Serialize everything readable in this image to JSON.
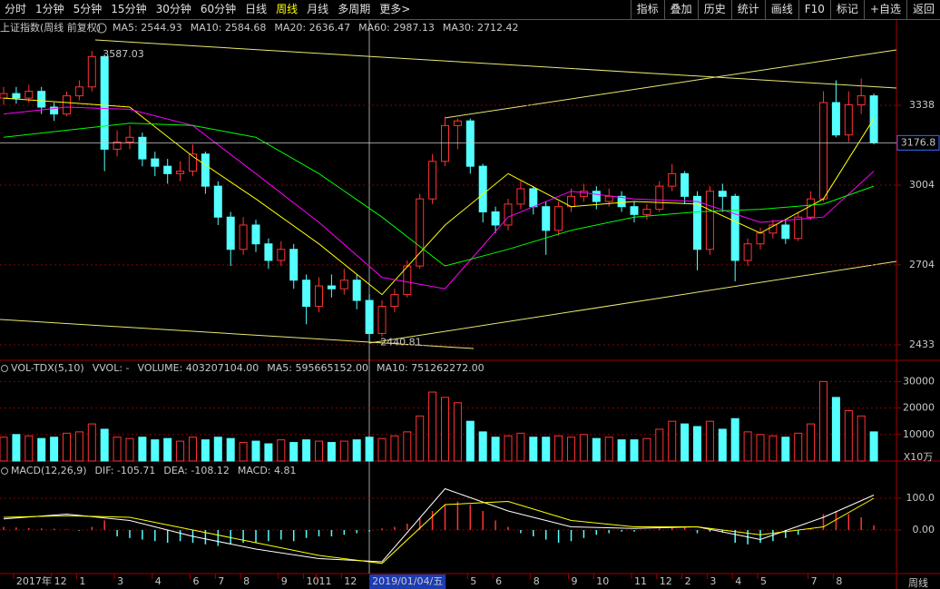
{
  "toolbar": {
    "left": [
      "分时",
      "1分钟",
      "5分钟",
      "15分钟",
      "30分钟",
      "60分钟",
      "日线",
      "周线",
      "月线",
      "多周期",
      "更多>"
    ],
    "right": [
      "指标",
      "叠加",
      "历史",
      "统计",
      "画线",
      "F10",
      "标记",
      "+自选",
      "返回"
    ],
    "selected": "周线"
  },
  "chart_data": {
    "type": "candlestick",
    "title": "上证指数(周线 前复权)",
    "legend": [
      {
        "text": "MA5: 2544.93",
        "color": "#ffffff"
      },
      {
        "text": "MA10: 2584.68",
        "color": "#ffff00"
      },
      {
        "text": "MA20: 2636.47",
        "color": "#ff00ff"
      },
      {
        "text": "MA60: 2987.13",
        "color": "#00ff00"
      },
      {
        "text": "MA30: 2712.42",
        "color": "#ffffff"
      }
    ],
    "categories": [
      null,
      "2017年",
      null,
      null,
      "12",
      null,
      "1",
      null,
      null,
      "3",
      null,
      null,
      "4",
      null,
      null,
      "6",
      null,
      "7",
      null,
      "8",
      null,
      null,
      "9",
      null,
      "10",
      "11",
      null,
      "12",
      null,
      "2019/01/04/五",
      null,
      null,
      null,
      null,
      null,
      null,
      null,
      "5",
      null,
      "6",
      null,
      null,
      "8",
      null,
      null,
      "9",
      null,
      "10",
      null,
      null,
      "11",
      null,
      "12",
      null,
      "2",
      null,
      "3",
      null,
      "4",
      null,
      "5",
      null,
      null,
      null,
      "7",
      null,
      "8",
      null,
      null,
      null
    ],
    "open": [
      3370,
      3390,
      3370,
      3400,
      3330,
      3300,
      3380,
      3420,
      3560,
      3150,
      3180,
      3200,
      3110,
      3080,
      3050,
      3060,
      3130,
      3000,
      2880,
      2760,
      2850,
      2780,
      2720,
      2760,
      2650,
      2560,
      2630,
      2620,
      2650,
      2580,
      2470,
      2560,
      2600,
      2700,
      2950,
      3100,
      3250,
      3270,
      3080,
      2900,
      2850,
      2930,
      2990,
      2920,
      2830,
      2920,
      2960,
      2980,
      2940,
      2960,
      2920,
      2890,
      2910,
      3000,
      3050,
      2960,
      2760,
      2980,
      2960,
      2720,
      2780,
      2820,
      2850,
      2800,
      2880,
      2950,
      3350,
      3210,
      3340,
      3380
    ],
    "high": [
      3420,
      3420,
      3430,
      3420,
      3350,
      3400,
      3450,
      3587,
      3570,
      3230,
      3250,
      3220,
      3140,
      3110,
      3100,
      3170,
      3140,
      3020,
      2900,
      2880,
      2870,
      2800,
      2790,
      2780,
      2670,
      2660,
      2670,
      2690,
      2670,
      2600,
      2580,
      2620,
      2720,
      2970,
      3130,
      3288,
      3280,
      3280,
      3090,
      2920,
      2950,
      3020,
      3000,
      2940,
      2940,
      2990,
      3010,
      3000,
      2990,
      2980,
      2940,
      2930,
      3020,
      3090,
      3060,
      2980,
      3000,
      3010,
      2970,
      2800,
      2840,
      2870,
      2870,
      2900,
      2980,
      3400,
      3450,
      3400,
      3458,
      3390
    ],
    "low": [
      3340,
      3345,
      3350,
      3300,
      3270,
      3290,
      3360,
      3400,
      3060,
      3120,
      3150,
      3080,
      3040,
      3010,
      3020,
      3040,
      2970,
      2850,
      2700,
      2740,
      2750,
      2690,
      2700,
      2620,
      2500,
      2540,
      2590,
      2600,
      2550,
      2440,
      2460,
      2540,
      2590,
      2690,
      2930,
      3080,
      3150,
      3050,
      2860,
      2820,
      2830,
      2910,
      2890,
      2740,
      2810,
      2900,
      2940,
      2910,
      2920,
      2900,
      2860,
      2870,
      2900,
      2980,
      2930,
      2685,
      2740,
      2900,
      2646,
      2700,
      2760,
      2800,
      2780,
      2790,
      2870,
      2940,
      3200,
      3180,
      3300,
      3170
    ],
    "close": [
      3390,
      3370,
      3400,
      3330,
      3300,
      3380,
      3420,
      3560,
      3150,
      3180,
      3200,
      3110,
      3080,
      3050,
      3060,
      3130,
      3000,
      2880,
      2760,
      2850,
      2780,
      2720,
      2760,
      2650,
      2560,
      2630,
      2620,
      2650,
      2580,
      2470,
      2560,
      2600,
      2700,
      2950,
      3100,
      3250,
      3270,
      3080,
      2900,
      2850,
      2930,
      2990,
      2920,
      2830,
      2920,
      2960,
      2980,
      2940,
      2960,
      2920,
      2890,
      2910,
      3000,
      3050,
      2960,
      2760,
      2980,
      2960,
      2720,
      2780,
      2820,
      2850,
      2800,
      2880,
      2950,
      3350,
      3210,
      3340,
      3380,
      3176.8
    ],
    "up_color": "#ff3232",
    "down_color": "#54ffff",
    "ma_series": [
      {
        "color": "#ffff00",
        "x": [
          0,
          5,
          10,
          15,
          20,
          25,
          30,
          35,
          40,
          45,
          50,
          55,
          60,
          65,
          69
        ],
        "values": [
          3370,
          3350,
          3330,
          3120,
          2950,
          2780,
          2600,
          2850,
          3050,
          2920,
          2940,
          2930,
          2820,
          2950,
          3280
        ]
      },
      {
        "color": "#ff00ff",
        "x": [
          0,
          5,
          10,
          15,
          20,
          25,
          30,
          35,
          40,
          45,
          50,
          55,
          60,
          65,
          69
        ],
        "values": [
          3300,
          3330,
          3320,
          3250,
          3050,
          2860,
          2660,
          2620,
          2880,
          2980,
          2950,
          2940,
          2860,
          2880,
          3060
        ]
      },
      {
        "color": "#00ff00",
        "x": [
          0,
          5,
          10,
          15,
          20,
          25,
          30,
          35,
          40,
          45,
          50,
          55,
          60,
          65,
          69
        ],
        "values": [
          3200,
          3230,
          3260,
          3250,
          3200,
          3050,
          2880,
          2700,
          2760,
          2830,
          2880,
          2900,
          2910,
          2930,
          3000
        ]
      }
    ],
    "high_label": 3587.03,
    "low_label": 2440.81,
    "current_price": 3176.8,
    "log_scale": true,
    "ylim": [
      2384,
      3736
    ],
    "yticks": [
      3338,
      3004,
      2704,
      2433
    ],
    "grid": true,
    "volume": {
      "legend": [
        {
          "text": "VOL-TDX(5,10)",
          "color": "#c8c8c8"
        },
        {
          "text": "VVOL: -",
          "color": "#c8c8c8"
        },
        {
          "text": "VOLUME: 403207104.00",
          "color": "#ffff00"
        },
        {
          "text": "MA5: 595665152.00",
          "color": "#ffff00"
        },
        {
          "text": "MA10: 751262272.00",
          "color": "#ff00ff"
        }
      ],
      "unit": "X10万",
      "values": [
        9000,
        10000,
        9500,
        8500,
        9000,
        10500,
        11000,
        14000,
        12000,
        9000,
        8500,
        9000,
        8000,
        8500,
        7500,
        9000,
        8000,
        9000,
        8500,
        7000,
        7500,
        6500,
        8000,
        7000,
        8000,
        7500,
        7000,
        7500,
        8000,
        9000,
        8500,
        9500,
        11000,
        17000,
        26000,
        24000,
        22000,
        15000,
        11000,
        9000,
        9500,
        10500,
        9000,
        9000,
        9500,
        9000,
        10000,
        8500,
        9000,
        8000,
        8000,
        8500,
        12000,
        15000,
        14000,
        13000,
        15000,
        12000,
        16000,
        11000,
        10000,
        9500,
        9000,
        10500,
        14000,
        30000,
        24000,
        19000,
        17000,
        11000
      ],
      "ylim": [
        0,
        38000
      ],
      "yticks": [
        30000,
        20000,
        10000
      ]
    },
    "macd": {
      "legend": [
        {
          "text": "MACD(12,26,9)",
          "color": "#c8c8c8"
        },
        {
          "text": "DIF: -105.71",
          "color": "#ffffff"
        },
        {
          "text": "DEA: -108.12",
          "color": "#ffff00"
        },
        {
          "text": "MACD: 4.81",
          "color": "#ff00ff"
        }
      ],
      "values": [
        10,
        8,
        6,
        5,
        4,
        2,
        -2,
        10,
        30,
        -20,
        -25,
        -30,
        -35,
        -40,
        -35,
        -40,
        -45,
        -50,
        -45,
        -40,
        -40,
        -35,
        -30,
        -35,
        -25,
        -20,
        -20,
        -15,
        -10,
        -5,
        5,
        10,
        20,
        40,
        60,
        80,
        90,
        80,
        60,
        30,
        10,
        -10,
        -20,
        -30,
        -40,
        -35,
        -25,
        -15,
        -10,
        -5,
        -5,
        0,
        5,
        10,
        8,
        -10,
        -5,
        -8,
        -40,
        -45,
        -40,
        -35,
        -25,
        -15,
        5,
        50,
        60,
        50,
        40,
        15
      ],
      "lines": [
        {
          "color": "#ffffff",
          "x": [
            0,
            5,
            10,
            15,
            20,
            25,
            30,
            35,
            40,
            45,
            50,
            55,
            60,
            65,
            69
          ],
          "values": [
            35,
            50,
            30,
            -20,
            -60,
            -90,
            -100,
            130,
            60,
            10,
            5,
            10,
            -30,
            40,
            110
          ]
        },
        {
          "color": "#ffff00",
          "x": [
            0,
            5,
            10,
            15,
            20,
            25,
            30,
            35,
            40,
            45,
            50,
            55,
            60,
            65,
            69
          ],
          "values": [
            40,
            45,
            40,
            0,
            -40,
            -80,
            -105,
            80,
            90,
            30,
            10,
            10,
            -15,
            10,
            100
          ]
        }
      ],
      "ylim": [
        -137,
        217
      ],
      "yticks": [
        {
          "value": 100,
          "label": "100.0"
        },
        {
          "value": 0,
          "label": "0.00"
        }
      ]
    },
    "period_label": "周线"
  }
}
